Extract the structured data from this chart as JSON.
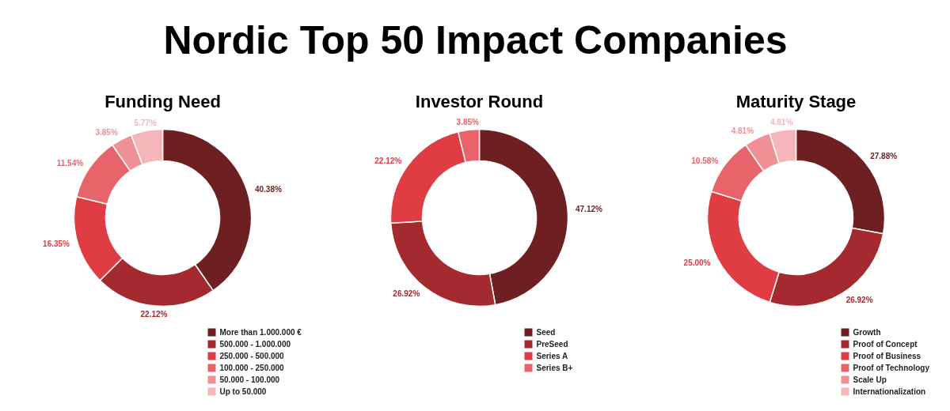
{
  "chart_data": [
    {
      "type": "other",
      "title": "Nordic Top 50 Impact Companies"
    },
    {
      "type": "donut",
      "title": "Funding Need",
      "categories": [
        "More than 1.000.000 €",
        "500.000 - 1.000.000",
        "250.000 - 500.000",
        "100.000 - 250.000",
        "50.000 - 100.000",
        "Up to 50.000"
      ],
      "values": [
        40.38,
        22.12,
        16.35,
        11.54,
        3.85,
        5.77
      ],
      "value_labels": [
        "40.38%",
        "22.12%",
        "16.35%",
        "11.54%",
        "3.85%",
        "5.77%"
      ],
      "colors": [
        "#6e1f22",
        "#a52a30",
        "#e03c44",
        "#e8646a",
        "#ef9095",
        "#f4b6b9"
      ],
      "legend": "bottom right"
    },
    {
      "type": "donut",
      "title": "Investor Round",
      "categories": [
        "Seed",
        "PreSeed",
        "Series A",
        "Series B+"
      ],
      "values": [
        47.12,
        26.92,
        22.12,
        3.85
      ],
      "value_labels": [
        "47.12%",
        "26.92%",
        "22.12%",
        "3.85%"
      ],
      "colors": [
        "#6e1f22",
        "#a52a30",
        "#e03c44",
        "#e8646a"
      ],
      "legend": "bottom right"
    },
    {
      "type": "donut",
      "title": "Maturity Stage",
      "categories": [
        "Growth",
        "Proof of Concept",
        "Proof of Business",
        "Proof of Technology",
        "Scale Up",
        "Internationalization"
      ],
      "values": [
        27.88,
        26.92,
        25.0,
        10.58,
        4.81,
        4.81
      ],
      "value_labels": [
        "27.88%",
        "26.92%",
        "25.00%",
        "10.58%",
        "4.81%",
        "4.81%"
      ],
      "colors": [
        "#6e1f22",
        "#a52a30",
        "#e03c44",
        "#e8646a",
        "#ef9095",
        "#f4b6b9"
      ],
      "legend": "bottom right"
    }
  ]
}
